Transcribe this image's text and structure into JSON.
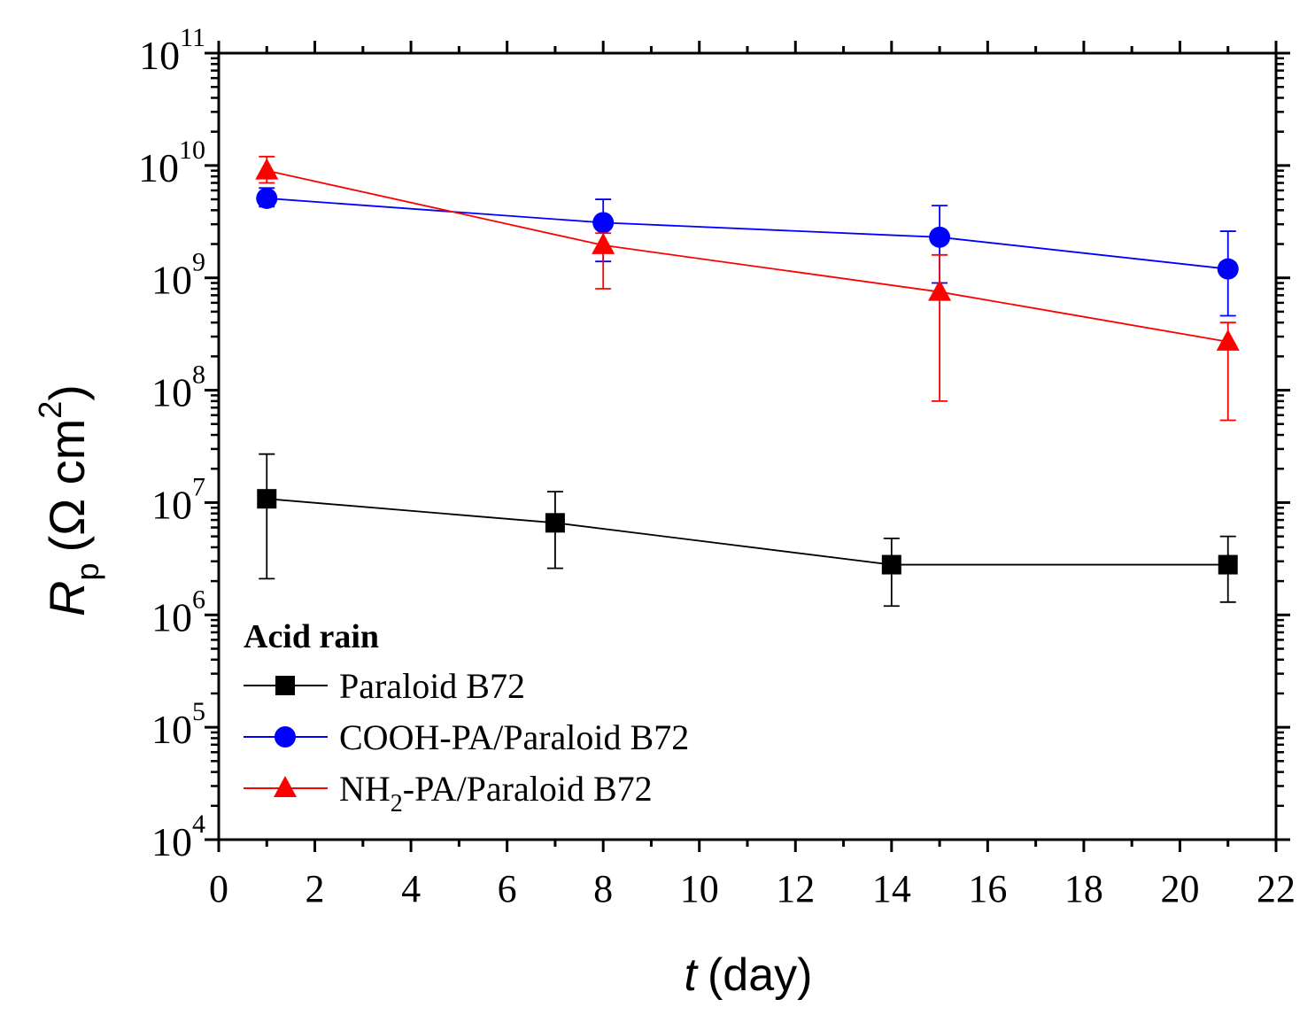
{
  "chart_data": {
    "type": "scatter",
    "title": "",
    "xlabel": {
      "var": "t",
      "unit": "(day)"
    },
    "ylabel": {
      "var": "R",
      "sub": "p",
      "unit_open": "(Ω cm",
      "sup": "2",
      "unit_close": ")"
    },
    "xlim": [
      0,
      22
    ],
    "ylim": [
      10000,
      100000000000
    ],
    "yscale": "log",
    "x_ticks": [
      0,
      2,
      4,
      6,
      8,
      10,
      12,
      14,
      16,
      18,
      20,
      22
    ],
    "y_ticks": [
      {
        "value": 10000,
        "base": "10",
        "exp": "4"
      },
      {
        "value": 100000,
        "base": "10",
        "exp": "5"
      },
      {
        "value": 1000000,
        "base": "10",
        "exp": "6"
      },
      {
        "value": 10000000,
        "base": "10",
        "exp": "7"
      },
      {
        "value": 100000000,
        "base": "10",
        "exp": "8"
      },
      {
        "value": 1000000000,
        "base": "10",
        "exp": "9"
      },
      {
        "value": 10000000000,
        "base": "10",
        "exp": "10"
      },
      {
        "value": 100000000000,
        "base": "10",
        "exp": "11"
      }
    ],
    "legend": {
      "title": "Acid rain",
      "placement": "bottom-left"
    },
    "series": [
      {
        "name": "Paraloid B72",
        "label_parts": [
          "Paraloid B72"
        ],
        "color": "#000000",
        "marker": "square",
        "points": [
          {
            "x": 1,
            "y": 10800000,
            "lo": 2100000,
            "hi": 27000000
          },
          {
            "x": 7,
            "y": 6600000,
            "lo": 2600000,
            "hi": 12500000
          },
          {
            "x": 14,
            "y": 2800000,
            "lo": 1200000,
            "hi": 4800000
          },
          {
            "x": 21,
            "y": 2800000,
            "lo": 1300000,
            "hi": 5000000
          }
        ]
      },
      {
        "name": "COOH-PA/Paraloid B72",
        "label_parts": [
          "COOH-PA/Paraloid B72"
        ],
        "color": "#0000ff",
        "marker": "circle",
        "points": [
          {
            "x": 1,
            "y": 5100000000,
            "lo": 4300000000,
            "hi": 6300000000
          },
          {
            "x": 8,
            "y": 3100000000,
            "lo": 1400000000,
            "hi": 5000000000
          },
          {
            "x": 15,
            "y": 2300000000,
            "lo": 900000000,
            "hi": 4400000000
          },
          {
            "x": 21,
            "y": 1200000000,
            "lo": 460000000,
            "hi": 2600000000
          }
        ]
      },
      {
        "name": "NH2-PA/Paraloid B72",
        "label_parts": [
          "NH",
          "2",
          "-PA/Paraloid B72"
        ],
        "color": "#ff0000",
        "marker": "triangle",
        "points": [
          {
            "x": 1,
            "y": 9000000000,
            "lo": 7000000000,
            "hi": 12000000000
          },
          {
            "x": 8,
            "y": 1950000000,
            "lo": 800000000,
            "hi": 2500000000
          },
          {
            "x": 15,
            "y": 750000000,
            "lo": 80000000,
            "hi": 1600000000
          },
          {
            "x": 21,
            "y": 270000000,
            "lo": 54000000,
            "hi": 400000000
          }
        ]
      }
    ]
  }
}
